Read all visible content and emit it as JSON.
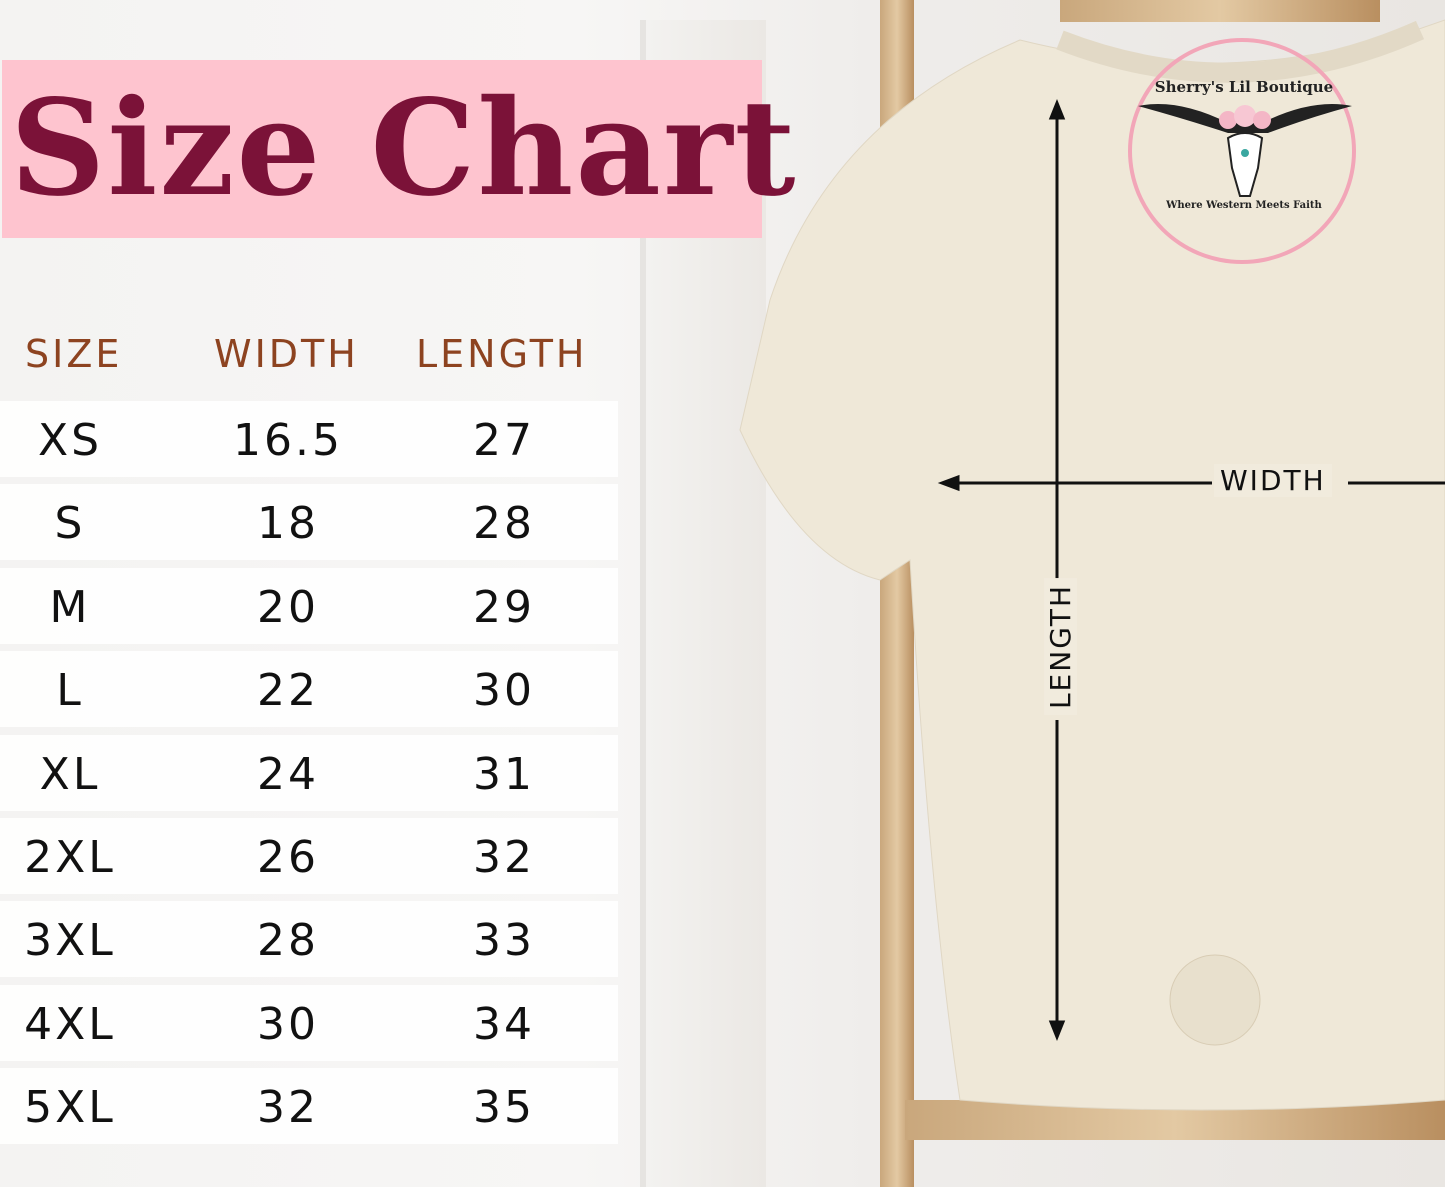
{
  "title": "Size Chart",
  "table": {
    "headers": [
      "SIZE",
      "WIDTH",
      "LENGTH"
    ],
    "rows": [
      [
        "XS",
        "16.5",
        "27"
      ],
      [
        "S",
        "18",
        "28"
      ],
      [
        "M",
        "20",
        "29"
      ],
      [
        "L",
        "22",
        "30"
      ],
      [
        "XL",
        "24",
        "31"
      ],
      [
        "2XL",
        "26",
        "32"
      ],
      [
        "3XL",
        "28",
        "33"
      ],
      [
        "4XL",
        "30",
        "34"
      ],
      [
        "5XL",
        "32",
        "35"
      ]
    ]
  },
  "logo": {
    "name": "Sherry's Lil Boutique",
    "tagline": "Where Western Meets Faith",
    "icon": "longhorn-skull-icon"
  },
  "diagram": {
    "width_label": "WIDTH",
    "length_label": "LENGTH"
  },
  "colors": {
    "title_bg": "#fec4cf",
    "title_text": "#7b1238",
    "header_text": "#8d4320",
    "shirt": "#efe8d8"
  }
}
